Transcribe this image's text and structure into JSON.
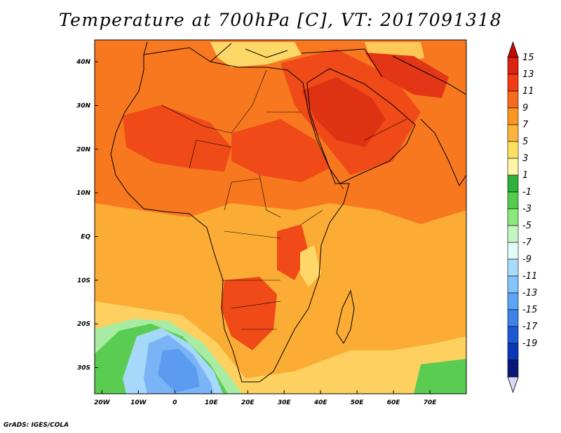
{
  "title": "Temperature at 700hPa [C], VT: 2017091318",
  "credit": "GrADS: IGES/COLA",
  "map": {
    "lon_range": [
      -22,
      80
    ],
    "lat_range": [
      -36,
      45
    ],
    "lat_ticks": [
      {
        "lat": 40,
        "label": "40N"
      },
      {
        "lat": 30,
        "label": "30N"
      },
      {
        "lat": 20,
        "label": "20N"
      },
      {
        "lat": 10,
        "label": "10N"
      },
      {
        "lat": 0,
        "label": "EQ"
      },
      {
        "lat": -10,
        "label": "10S"
      },
      {
        "lat": -20,
        "label": "20S"
      },
      {
        "lat": -30,
        "label": "30S"
      }
    ],
    "lon_ticks": [
      {
        "lon": -20,
        "label": "20W"
      },
      {
        "lon": -10,
        "label": "10W"
      },
      {
        "lon": 0,
        "label": "0"
      },
      {
        "lon": 10,
        "label": "10E"
      },
      {
        "lon": 20,
        "label": "20E"
      },
      {
        "lon": 30,
        "label": "30E"
      },
      {
        "lon": 40,
        "label": "40E"
      },
      {
        "lon": 50,
        "label": "50E"
      },
      {
        "lon": 60,
        "label": "60E"
      },
      {
        "lon": 70,
        "label": "70E"
      }
    ]
  },
  "legend": {
    "labels": [
      "15",
      "13",
      "11",
      "9",
      "7",
      "5",
      "3",
      "1",
      "-1",
      "-3",
      "-5",
      "-7",
      "-9",
      "-11",
      "-13",
      "-15",
      "-17",
      "-19"
    ],
    "colors": [
      "#dd2210",
      "#f23c14",
      "#f86a1c",
      "#fb9622",
      "#fdb43c",
      "#fde060",
      "#fff4a8",
      "#2eb03a",
      "#56cc4c",
      "#88ea78",
      "#c4f6c2",
      "#e2fcfa",
      "#a8dcfc",
      "#84c4fa",
      "#5ca4f4",
      "#3c84e8",
      "#1c58d4",
      "#0a38b4",
      "#081878"
    ],
    "arrow_top": "#c60c00",
    "arrow_bottom": "#d8d8f8"
  },
  "palette": {
    "ocean_warm": "#fbac34",
    "ocean_mid": "#fdd05a",
    "land_orange": "#f8701e",
    "land_hot": "#ef4a18",
    "hot_core": "#de3212",
    "cool_green": "#5bcc52",
    "cool_light": "#a8eca4",
    "cold_blue": "#7ab4f6",
    "cold_mid": "#5c9cf0"
  }
}
